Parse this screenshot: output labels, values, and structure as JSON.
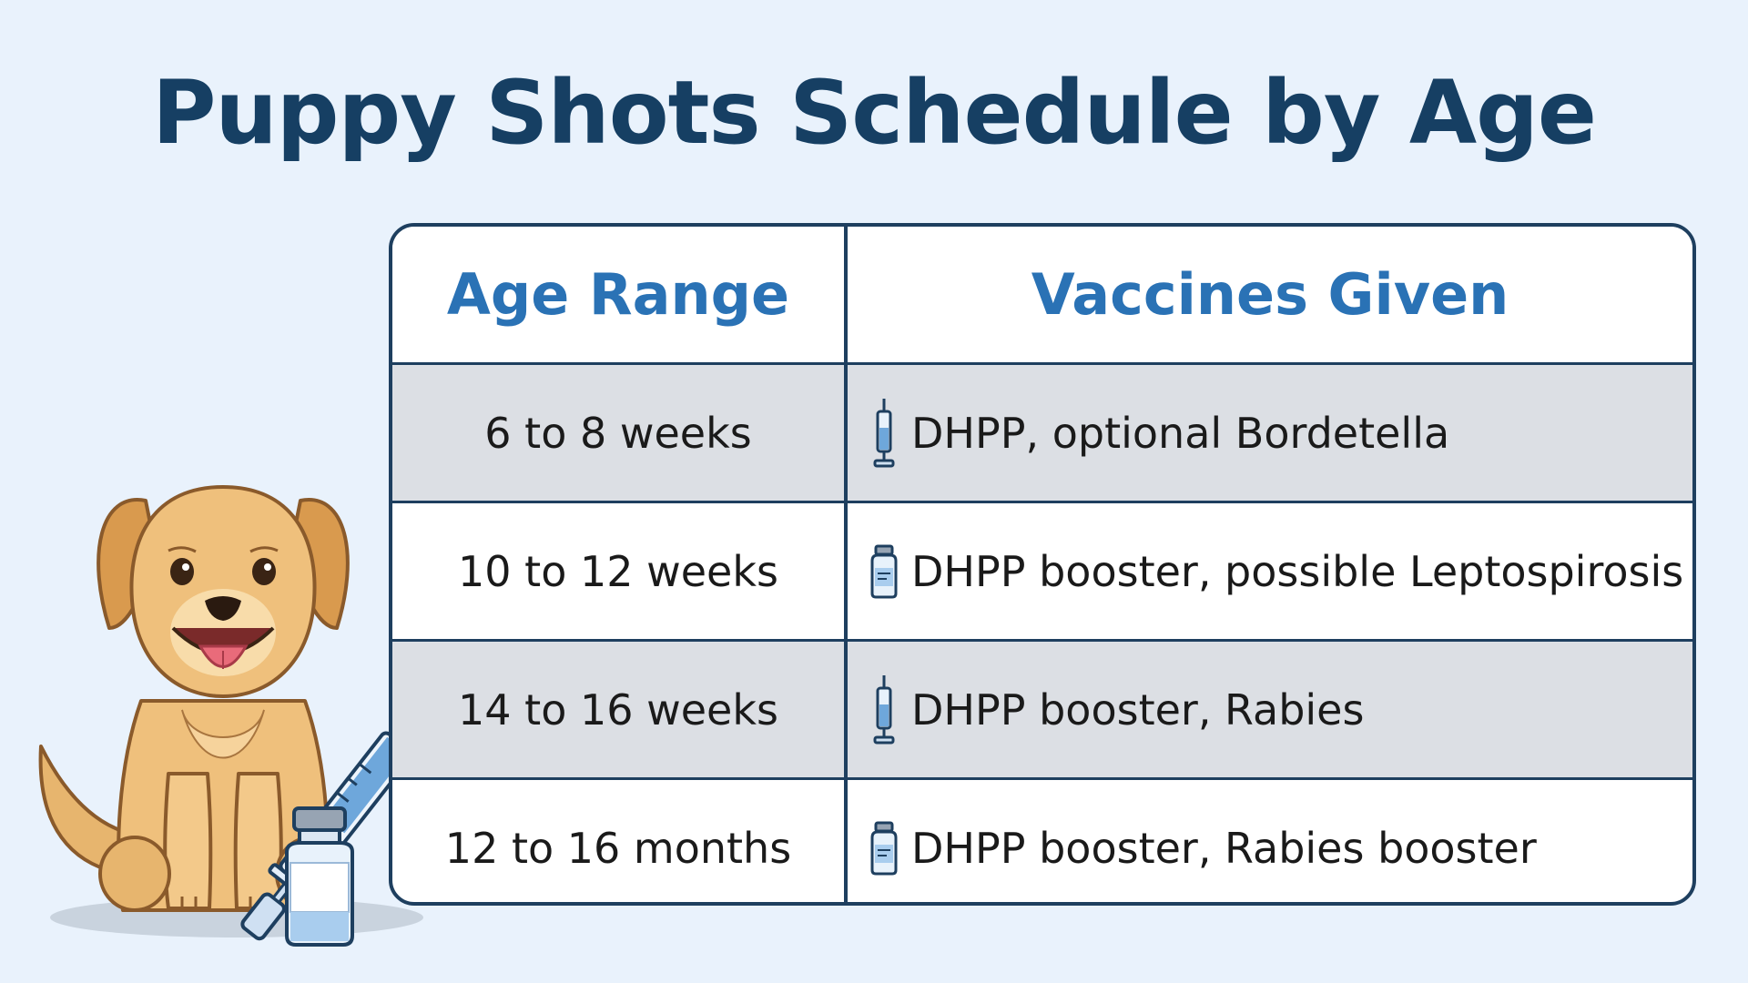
{
  "title": "Puppy Shots Schedule by Age",
  "table": {
    "headers": [
      "Age Range",
      "Vaccines Given"
    ],
    "rows": [
      {
        "age": "6 to 8 weeks",
        "vaccines": "DHPP, optional Bordetella",
        "icon": "syringe-icon"
      },
      {
        "age": "10 to 12 weeks",
        "vaccines": "DHPP booster, possible Leptospirosis",
        "icon": "vial-icon"
      },
      {
        "age": "14 to 16 weeks",
        "vaccines": "DHPP booster, Rabies",
        "icon": "syringe-icon"
      },
      {
        "age": "12 to 16 months",
        "vaccines": "DHPP booster, Rabies booster",
        "icon": "vial-icon"
      }
    ]
  },
  "colors": {
    "background": "#e9f2fc",
    "title": "#163f63",
    "header_text": "#2a72b5",
    "border": "#1e3f5f",
    "shaded_row": "#dcdfe4"
  }
}
